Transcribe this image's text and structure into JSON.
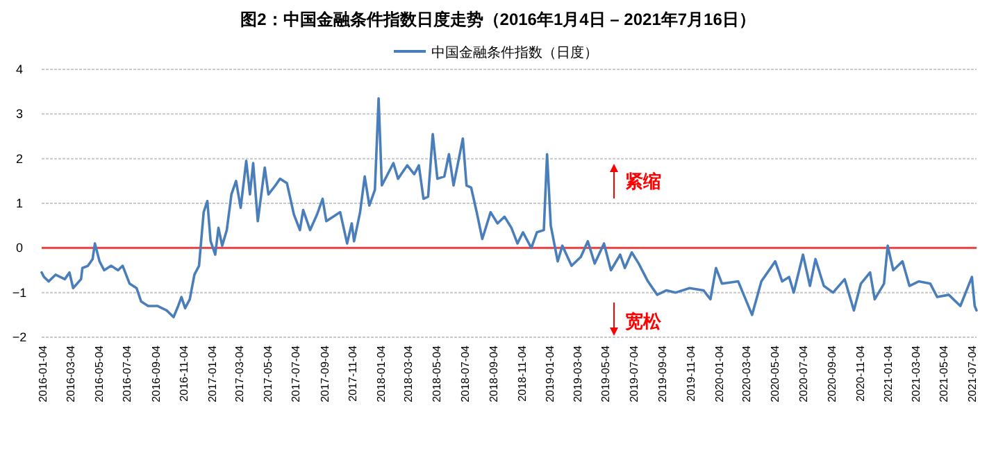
{
  "chart_data": {
    "type": "line",
    "title": "图2：中国金融条件指数日度走势（2016年1月4日 – 2021年7月16日）",
    "x": [
      "2016-01-04",
      "2016-01-09",
      "2016-01-19",
      "2016-02-03",
      "2016-02-23",
      "2016-03-04",
      "2016-03-12",
      "2016-03-29",
      "2016-04-01",
      "2016-04-13",
      "2016-04-23",
      "2016-04-28",
      "2016-05-08",
      "2016-05-18",
      "2016-06-02",
      "2016-06-17",
      "2016-06-27",
      "2016-07-12",
      "2016-07-27",
      "2016-08-06",
      "2016-08-21",
      "2016-09-10",
      "2016-09-30",
      "2016-10-15",
      "2016-10-25",
      "2016-11-01",
      "2016-11-09",
      "2016-11-19",
      "2016-11-29",
      "2016-12-09",
      "2016-12-19",
      "2016-12-27",
      "2017-01-03",
      "2017-01-13",
      "2017-01-20",
      "2017-01-28",
      "2017-02-07",
      "2017-02-17",
      "2017-02-27",
      "2017-03-09",
      "2017-03-21",
      "2017-03-29",
      "2017-04-05",
      "2017-04-15",
      "2017-04-30",
      "2017-05-08",
      "2017-05-23",
      "2017-06-02",
      "2017-06-17",
      "2017-07-02",
      "2017-07-15",
      "2017-07-22",
      "2017-08-06",
      "2017-08-21",
      "2017-09-02",
      "2017-09-10",
      "2017-09-25",
      "2017-10-10",
      "2017-10-25",
      "2017-11-04",
      "2017-11-09",
      "2017-11-22",
      "2017-12-02",
      "2017-12-12",
      "2017-12-24",
      "2018-01-01",
      "2018-01-08",
      "2018-01-23",
      "2018-02-02",
      "2018-02-12",
      "2018-03-04",
      "2018-03-19",
      "2018-03-29",
      "2018-04-08",
      "2018-04-18",
      "2018-04-28",
      "2018-05-08",
      "2018-05-23",
      "2018-06-02",
      "2018-06-12",
      "2018-07-02",
      "2018-07-10",
      "2018-07-20",
      "2018-08-01",
      "2018-08-13",
      "2018-08-31",
      "2018-09-15",
      "2018-09-30",
      "2018-10-15",
      "2018-10-28",
      "2018-11-09",
      "2018-11-27",
      "2018-12-09",
      "2018-12-24",
      "2018-12-31",
      "2019-01-08",
      "2019-01-23",
      "2019-02-02",
      "2019-02-22",
      "2019-03-14",
      "2019-03-29",
      "2019-04-13",
      "2019-05-03",
      "2019-05-18",
      "2019-06-07",
      "2019-06-17",
      "2019-07-02",
      "2019-07-17",
      "2019-08-06",
      "2019-08-26",
      "2019-09-15",
      "2019-10-05",
      "2019-11-04",
      "2019-12-04",
      "2019-12-19",
      "2019-12-31",
      "2020-01-13",
      "2020-02-17",
      "2020-03-18",
      "2020-04-07",
      "2020-05-07",
      "2020-05-22",
      "2020-06-06",
      "2020-06-16",
      "2020-07-06",
      "2020-07-21",
      "2020-08-02",
      "2020-08-20",
      "2020-09-09",
      "2020-10-04",
      "2020-10-24",
      "2020-11-08",
      "2020-11-28",
      "2020-12-08",
      "2020-12-28",
      "2021-01-05",
      "2021-01-17",
      "2021-02-06",
      "2021-02-21",
      "2021-03-13",
      "2021-04-07",
      "2021-04-22",
      "2021-05-17",
      "2021-06-11",
      "2021-07-06",
      "2021-07-12",
      "2021-07-16"
    ],
    "series": [
      {
        "name": "中国金融条件指数（日度）",
        "color": "#4a7ebb",
        "values": [
          -0.55,
          -0.65,
          -0.75,
          -0.6,
          -0.7,
          -0.55,
          -0.9,
          -0.7,
          -0.45,
          -0.4,
          -0.25,
          0.1,
          -0.3,
          -0.5,
          -0.4,
          -0.5,
          -0.4,
          -0.8,
          -0.9,
          -1.2,
          -1.3,
          -1.3,
          -1.4,
          -1.55,
          -1.3,
          -1.1,
          -1.35,
          -1.15,
          -0.6,
          -0.4,
          0.8,
          1.05,
          0.15,
          -0.15,
          0.45,
          0.05,
          0.4,
          1.2,
          1.5,
          0.9,
          1.95,
          1.2,
          1.9,
          0.6,
          1.8,
          1.2,
          1.4,
          1.55,
          1.45,
          0.75,
          0.4,
          0.85,
          0.4,
          0.75,
          1.1,
          0.6,
          0.7,
          0.8,
          0.1,
          0.55,
          0.15,
          0.8,
          1.6,
          0.95,
          1.3,
          3.35,
          1.4,
          1.7,
          1.9,
          1.55,
          1.85,
          1.65,
          1.85,
          1.1,
          1.15,
          2.55,
          1.55,
          1.6,
          2.1,
          1.4,
          2.45,
          1.4,
          1.35,
          0.8,
          0.2,
          0.8,
          0.55,
          0.7,
          0.45,
          0.1,
          0.35,
          0,
          0.35,
          0.4,
          2.1,
          0.5,
          -0.3,
          0.05,
          -0.4,
          -0.2,
          0.15,
          -0.35,
          0.1,
          -0.5,
          -0.15,
          -0.45,
          -0.1,
          -0.35,
          -0.75,
          -1.05,
          -0.95,
          -1.0,
          -0.9,
          -0.95,
          -1.15,
          -0.45,
          -0.8,
          -0.75,
          -1.5,
          -0.75,
          -0.3,
          -0.75,
          -0.65,
          -1.0,
          -0.15,
          -0.85,
          -0.25,
          -0.85,
          -1.0,
          -0.7,
          -1.4,
          -0.8,
          -0.55,
          -1.15,
          -0.8,
          0.05,
          -0.5,
          -0.3,
          -0.85,
          -0.75,
          -0.8,
          -1.1,
          -1.05,
          -1.3,
          -0.65,
          -1.3,
          -1.4
        ]
      }
    ],
    "xlim": [
      "2016-01-04",
      "2021-07-16"
    ],
    "xticks": [
      "2016-01-04",
      "2016-03-04",
      "2016-05-04",
      "2016-07-04",
      "2016-09-04",
      "2016-11-04",
      "2017-01-04",
      "2017-03-04",
      "2017-05-04",
      "2017-07-04",
      "2017-09-04",
      "2017-11-04",
      "2018-01-04",
      "2018-03-04",
      "2018-05-04",
      "2018-07-04",
      "2018-09-04",
      "2018-11-04",
      "2019-01-04",
      "2019-03-04",
      "2019-05-04",
      "2019-07-04",
      "2019-09-04",
      "2019-11-04",
      "2020-01-04",
      "2020-03-04",
      "2020-05-04",
      "2020-07-04",
      "2020-09-04",
      "2020-11-04",
      "2021-01-04",
      "2021-03-04",
      "2021-05-04",
      "2021-07-04"
    ],
    "ylim": [
      -2,
      4
    ],
    "yticks": [
      -2,
      -1,
      0,
      1,
      2,
      3,
      4
    ],
    "grid": "y",
    "legend": "top",
    "marker": "none",
    "line_style": "solid",
    "ref_lines": [
      {
        "axis": "y",
        "value": 0,
        "color": "#e8403f"
      }
    ],
    "annotations": [
      "紧缩",
      "宽松"
    ]
  }
}
